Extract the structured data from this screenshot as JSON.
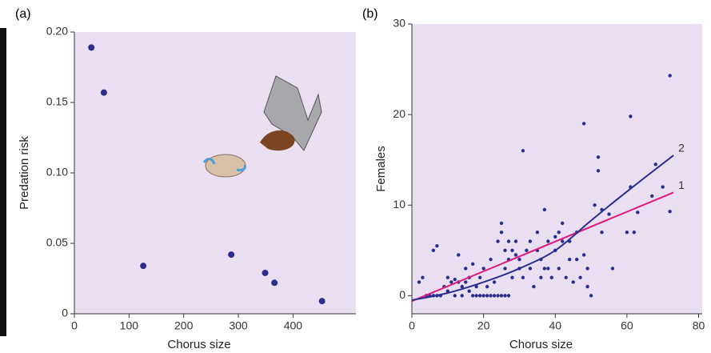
{
  "chart_data": [
    {
      "type": "scatter",
      "label": "(a)",
      "xlabel": "Chorus size",
      "ylabel": "Predation risk",
      "color": "#2b2e8c",
      "background": "#e9dff0",
      "x": [
        31,
        54,
        126,
        287,
        349,
        366,
        453
      ],
      "values": [
        0.189,
        0.157,
        0.034,
        0.042,
        0.029,
        0.022,
        0.009
      ],
      "xlim": [
        0,
        515
      ],
      "ylim": [
        0,
        0.2
      ],
      "xticks": [
        0,
        100,
        200,
        300,
        400
      ],
      "yticks": [
        0,
        0.05,
        {
          "value": 0.1,
          "label": "0.10"
        },
        0.15,
        {
          "value": 0.2,
          "label": "0.20"
        }
      ]
    },
    {
      "type": "scatter",
      "label": "(b)",
      "xlabel": "Chorus size",
      "ylabel": "Females",
      "color": "#2b2e8c",
      "background": "#e9dff0",
      "x": [
        2,
        3,
        4,
        5,
        6,
        6,
        7,
        7,
        8,
        9,
        10,
        10,
        11,
        12,
        12,
        13,
        13,
        14,
        14,
        15,
        15,
        16,
        16,
        17,
        17,
        18,
        18,
        19,
        19,
        20,
        20,
        21,
        21,
        22,
        22,
        23,
        23,
        24,
        24,
        25,
        25,
        25,
        26,
        26,
        26,
        27,
        27,
        27,
        28,
        28,
        29,
        29,
        30,
        30,
        31,
        31,
        32,
        33,
        33,
        34,
        35,
        35,
        36,
        36,
        37,
        37,
        38,
        38,
        39,
        40,
        40,
        41,
        41,
        42,
        42,
        43,
        44,
        44,
        45,
        46,
        46,
        47,
        48,
        48,
        49,
        49,
        50,
        51,
        52,
        52,
        53,
        53,
        55,
        56,
        60,
        61,
        61,
        62,
        63,
        67,
        68,
        70,
        72,
        72
      ],
      "values": [
        1.5,
        2,
        0,
        0,
        0,
        5,
        5.5,
        0,
        0,
        1,
        0.5,
        2,
        1.5,
        0,
        1.8,
        4.5,
        1.5,
        0,
        1,
        1.5,
        3,
        0.5,
        2,
        0,
        3.5,
        1,
        0,
        0,
        2,
        0,
        3,
        0,
        1,
        0,
        4,
        0,
        1.5,
        0,
        6,
        8,
        7,
        0,
        0,
        5,
        3,
        6,
        4,
        0,
        5,
        2,
        4.5,
        6,
        4,
        3,
        16,
        2,
        5,
        3,
        6,
        1,
        5,
        7,
        4,
        2,
        3,
        9.5,
        6,
        3,
        2,
        6.5,
        5,
        7,
        3,
        8,
        6,
        2,
        6,
        4,
        1.5,
        7,
        4,
        2,
        19,
        4.5,
        3,
        1,
        0,
        10,
        15.3,
        13.8,
        9.5,
        7,
        9,
        3,
        7,
        19.8,
        12,
        7,
        9.2,
        11,
        14.5,
        12,
        24.3,
        9.3
      ],
      "xlim": [
        0,
        81
      ],
      "ylim": [
        -2,
        30
      ],
      "xticks": [
        0,
        20,
        40,
        60,
        80
      ],
      "yticks": [
        0,
        10,
        20,
        30
      ],
      "series": [
        {
          "name": "1",
          "color": "#e0197d",
          "x": [
            0,
            73
          ],
          "values": [
            -0.6,
            11.4
          ]
        },
        {
          "name": "2",
          "color": "#2b2e8c",
          "x": [
            0,
            10,
            20,
            30,
            40,
            50,
            60,
            73
          ],
          "values": [
            -0.5,
            0.3,
            1.5,
            3,
            5,
            8.3,
            11.5,
            15.5
          ]
        }
      ]
    }
  ]
}
